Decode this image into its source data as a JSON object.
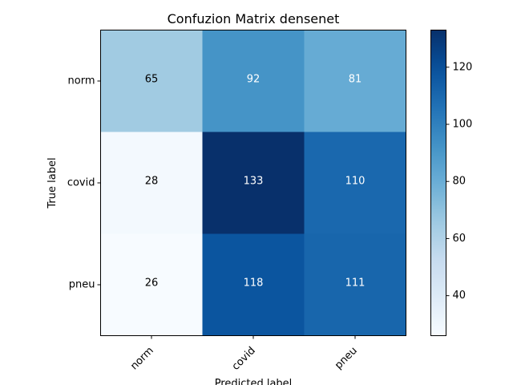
{
  "chart_data": {
    "type": "heatmap",
    "title": "Confuzion Matrix densenet",
    "xlabel": "Predicted label",
    "ylabel": "True label",
    "x_categories": [
      "norm",
      "covid",
      "pneu"
    ],
    "y_categories": [
      "norm",
      "covid",
      "pneu"
    ],
    "values": [
      [
        65,
        92,
        81
      ],
      [
        28,
        133,
        110
      ],
      [
        26,
        118,
        111
      ]
    ],
    "colormap": "Blues",
    "colorbar": {
      "min": 26,
      "max": 133,
      "ticks": [
        40,
        60,
        80,
        100,
        120
      ]
    },
    "text_colors": {
      "light_cell": "#000000",
      "dark_cell": "#ffffff"
    }
  }
}
